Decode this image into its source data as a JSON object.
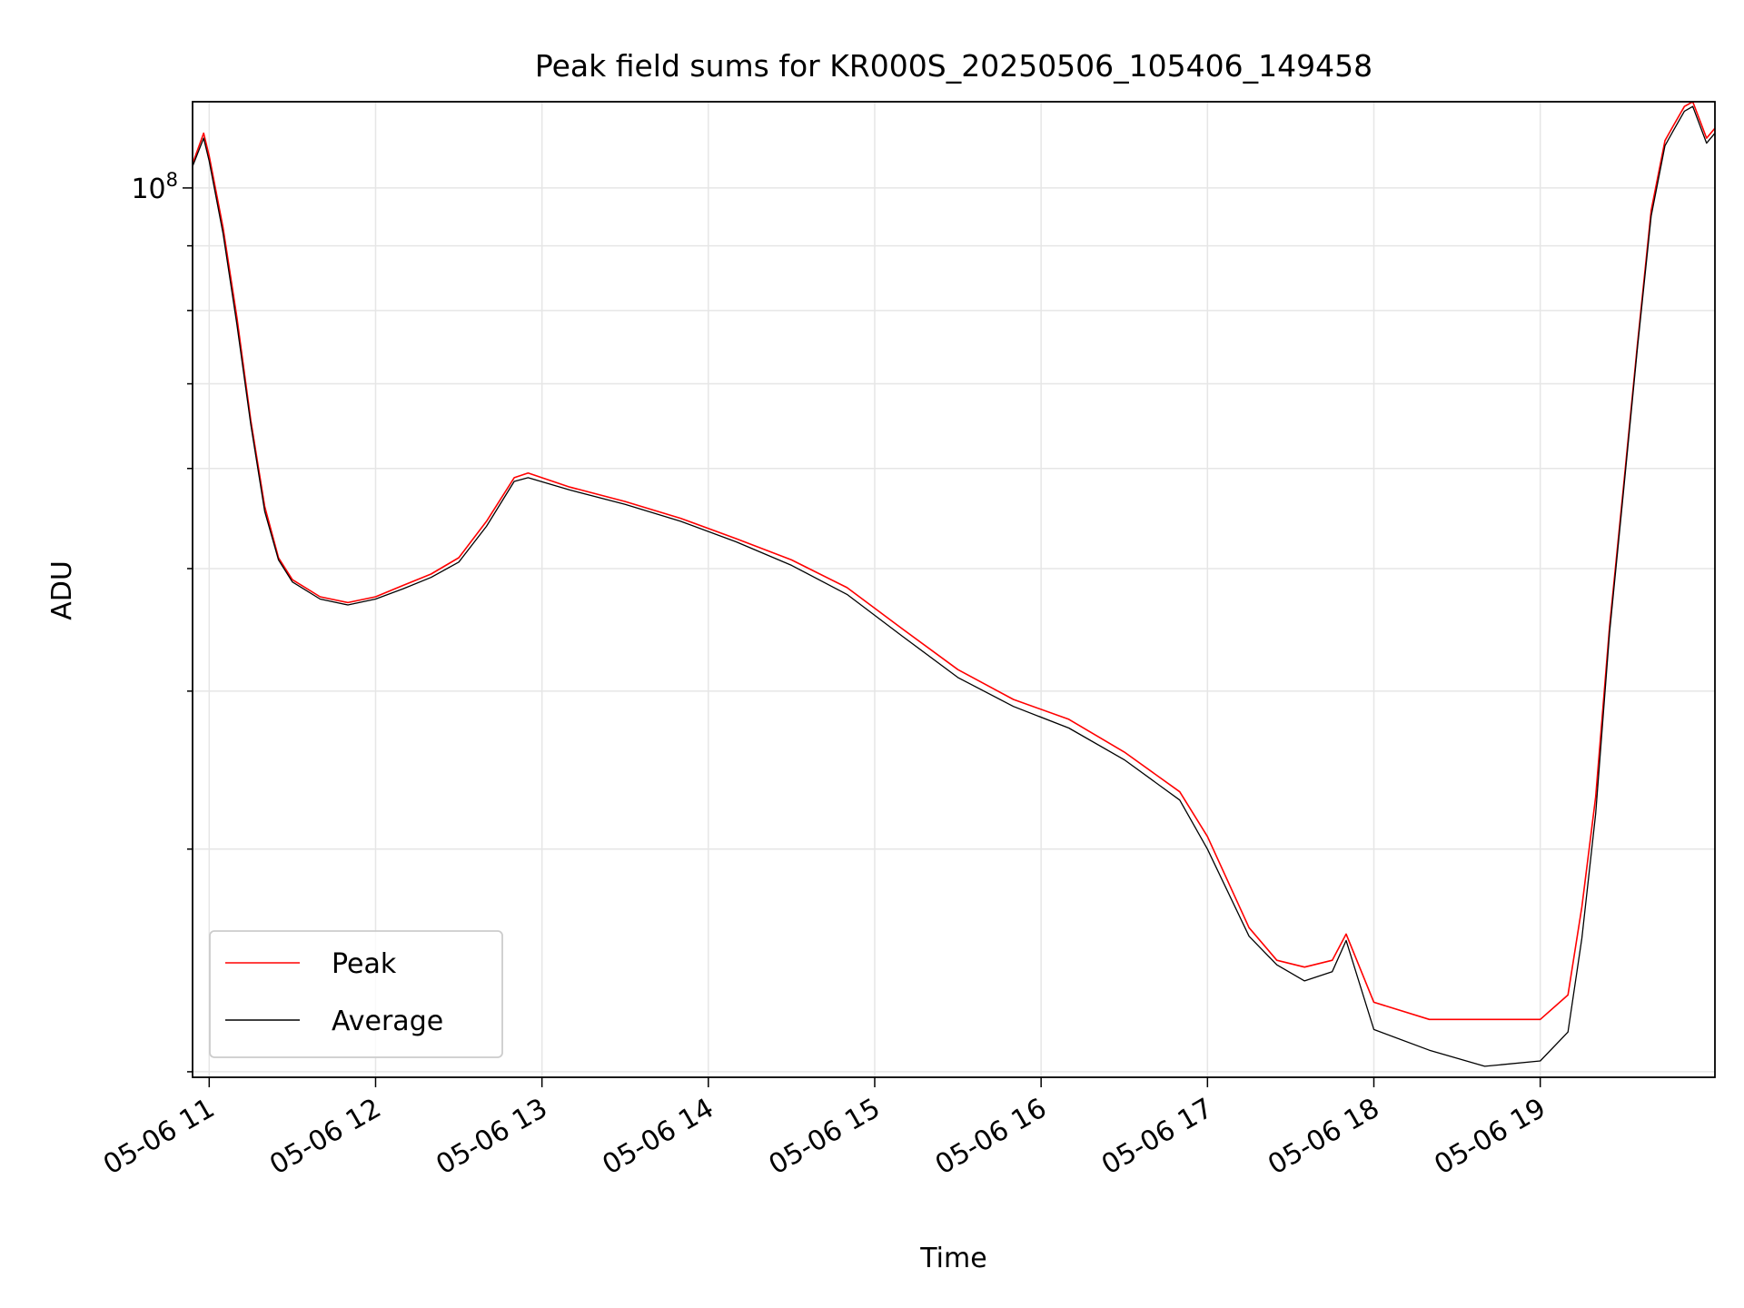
{
  "chart_data": {
    "type": "line",
    "title": "Peak field sums for KR000S_20250506_105406_149458",
    "xlabel": "Time",
    "ylabel": "ADU",
    "yscale": "log",
    "grid": true,
    "legend_position": "lower-left",
    "x_tick_labels": [
      "05-06 11",
      "05-06 12",
      "05-06 13",
      "05-06 14",
      "05-06 15",
      "05-06 16",
      "05-06 17",
      "05-06 18",
      "05-06 19"
    ],
    "y_tick_major_label_base": "10",
    "y_tick_major_label_exp": "8",
    "xlim": [
      "2025-05-06 10:54",
      "2025-05-06 20:03"
    ],
    "ylim": [
      19800000,
      117000000
    ],
    "series": [
      {
        "name": "Peak",
        "color": "#ff0000",
        "x": [
          "2025-05-06 10:54",
          "2025-05-06 10:58",
          "2025-05-06 11:00",
          "2025-05-06 11:05",
          "2025-05-06 11:10",
          "2025-05-06 11:15",
          "2025-05-06 11:20",
          "2025-05-06 11:25",
          "2025-05-06 11:30",
          "2025-05-06 11:40",
          "2025-05-06 11:50",
          "2025-05-06 12:00",
          "2025-05-06 12:10",
          "2025-05-06 12:20",
          "2025-05-06 12:30",
          "2025-05-06 12:40",
          "2025-05-06 12:50",
          "2025-05-06 12:55",
          "2025-05-06 13:10",
          "2025-05-06 13:30",
          "2025-05-06 13:50",
          "2025-05-06 14:10",
          "2025-05-06 14:30",
          "2025-05-06 14:50",
          "2025-05-06 15:10",
          "2025-05-06 15:30",
          "2025-05-06 15:50",
          "2025-05-06 16:10",
          "2025-05-06 16:30",
          "2025-05-06 16:50",
          "2025-05-06 17:00",
          "2025-05-06 17:15",
          "2025-05-06 17:25",
          "2025-05-06 17:35",
          "2025-05-06 17:45",
          "2025-05-06 17:50",
          "2025-05-06 18:00",
          "2025-05-06 18:20",
          "2025-05-06 18:40",
          "2025-05-06 19:00",
          "2025-05-06 19:10",
          "2025-05-06 19:15",
          "2025-05-06 19:20",
          "2025-05-06 19:25",
          "2025-05-06 19:30",
          "2025-05-06 19:35",
          "2025-05-06 19:40",
          "2025-05-06 19:45",
          "2025-05-06 19:48",
          "2025-05-06 19:52",
          "2025-05-06 19:55",
          "2025-05-06 20:00",
          "2025-05-06 20:03"
        ],
        "values": [
          104500000,
          110500000,
          106000000,
          93000000,
          79000000,
          65500000,
          56000000,
          51000000,
          49000000,
          47500000,
          47000000,
          47500000,
          48500000,
          49500000,
          51000000,
          54500000,
          59000000,
          59500000,
          58000000,
          56500000,
          54800000,
          52800000,
          50800000,
          48300000,
          44800000,
          41600000,
          39400000,
          38000000,
          35800000,
          33300000,
          30700000,
          26000000,
          24500000,
          24200000,
          24500000,
          25700000,
          22700000,
          22000000,
          22000000,
          22000000,
          23000000,
          27000000,
          33000000,
          45000000,
          58000000,
          75000000,
          96000000,
          109000000,
          112000000,
          116000000,
          117000000,
          109500000,
          111500000
        ]
      },
      {
        "name": "Average",
        "color": "#000000",
        "x": [
          "2025-05-06 10:54",
          "2025-05-06 10:58",
          "2025-05-06 11:00",
          "2025-05-06 11:05",
          "2025-05-06 11:10",
          "2025-05-06 11:15",
          "2025-05-06 11:20",
          "2025-05-06 11:25",
          "2025-05-06 11:30",
          "2025-05-06 11:40",
          "2025-05-06 11:50",
          "2025-05-06 12:00",
          "2025-05-06 12:10",
          "2025-05-06 12:20",
          "2025-05-06 12:30",
          "2025-05-06 12:40",
          "2025-05-06 12:50",
          "2025-05-06 12:55",
          "2025-05-06 13:10",
          "2025-05-06 13:30",
          "2025-05-06 13:50",
          "2025-05-06 14:10",
          "2025-05-06 14:30",
          "2025-05-06 14:50",
          "2025-05-06 15:10",
          "2025-05-06 15:30",
          "2025-05-06 15:50",
          "2025-05-06 16:10",
          "2025-05-06 16:30",
          "2025-05-06 16:50",
          "2025-05-06 17:00",
          "2025-05-06 17:15",
          "2025-05-06 17:25",
          "2025-05-06 17:35",
          "2025-05-06 17:45",
          "2025-05-06 17:50",
          "2025-05-06 18:00",
          "2025-05-06 18:20",
          "2025-05-06 18:40",
          "2025-05-06 19:00",
          "2025-05-06 19:10",
          "2025-05-06 19:15",
          "2025-05-06 19:20",
          "2025-05-06 19:25",
          "2025-05-06 19:30",
          "2025-05-06 19:35",
          "2025-05-06 19:40",
          "2025-05-06 19:45",
          "2025-05-06 19:48",
          "2025-05-06 19:52",
          "2025-05-06 19:55",
          "2025-05-06 20:00",
          "2025-05-06 20:03"
        ],
        "values": [
          104000000,
          109500000,
          105000000,
          92000000,
          78000000,
          65000000,
          55500000,
          50800000,
          48800000,
          47300000,
          46800000,
          47300000,
          48200000,
          49200000,
          50600000,
          54000000,
          58600000,
          59000000,
          57700000,
          56200000,
          54500000,
          52500000,
          50300000,
          47700000,
          44200000,
          41000000,
          38900000,
          37400000,
          35300000,
          32800000,
          30000000,
          25600000,
          24300000,
          23600000,
          24000000,
          25400000,
          21600000,
          20800000,
          20200000,
          20400000,
          21500000,
          25500000,
          32000000,
          44500000,
          57500000,
          74500000,
          95000000,
          108000000,
          111000000,
          115000000,
          116000000,
          108500000,
          110500000
        ]
      }
    ]
  }
}
